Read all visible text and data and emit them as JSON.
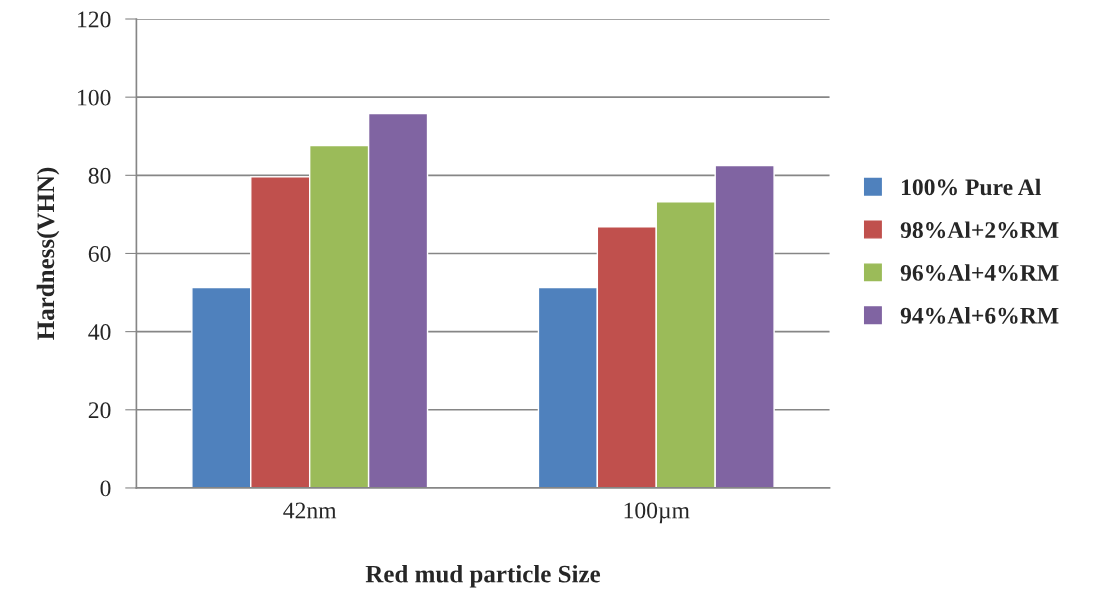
{
  "chart_data": {
    "type": "bar",
    "xlabel": "Red mud particle Size",
    "ylabel": "Hardness(VHN)",
    "categories": [
      "42nm",
      "100µm"
    ],
    "series": [
      {
        "name": "100% Pure Al",
        "color": "#4f81bd",
        "values": [
          51.3,
          51.3
        ]
      },
      {
        "name": "98%Al+2%RM",
        "color": "#c0504d",
        "values": [
          79.6,
          66.8
        ]
      },
      {
        "name": "96%Al+4%RM",
        "color": "#9bbb59",
        "values": [
          87.6,
          73.2
        ]
      },
      {
        "name": "94%Al+6%RM",
        "color": "#8064a2",
        "values": [
          95.8,
          82.5
        ]
      }
    ],
    "ylim": [
      0,
      120
    ],
    "yticks": [
      0,
      20,
      40,
      60,
      80,
      100,
      120
    ],
    "grid": "y",
    "legend": "right"
  }
}
